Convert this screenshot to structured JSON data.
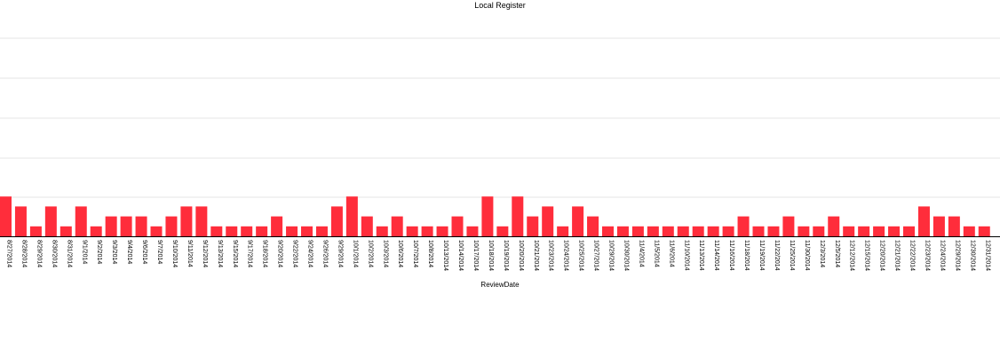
{
  "chart_data": {
    "type": "bar",
    "title": "Local Register",
    "xlabel": "ReviewDate",
    "ylabel": "",
    "bar_color": "#ff2d3b",
    "grid": true,
    "ylim": [
      0,
      10
    ],
    "categories": [
      "8/27/2014",
      "8/28/2014",
      "8/29/2014",
      "8/30/2014",
      "8/31/2014",
      "9/1/2014",
      "9/2/2014",
      "9/3/2014",
      "9/4/2014",
      "9/6/2014",
      "9/7/2014",
      "9/10/2014",
      "9/11/2014",
      "9/12/2014",
      "9/13/2014",
      "9/15/2014",
      "9/17/2014",
      "9/18/2014",
      "9/20/2014",
      "9/22/2014",
      "9/24/2014",
      "9/26/2014",
      "9/29/2014",
      "10/1/2014",
      "10/2/2014",
      "10/3/2014",
      "10/6/2014",
      "10/7/2014",
      "10/8/2014",
      "10/13/2014",
      "10/14/2014",
      "10/17/2014",
      "10/18/2014",
      "10/19/2014",
      "10/20/2014",
      "10/21/2014",
      "10/23/2014",
      "10/24/2014",
      "10/25/2014",
      "10/27/2014",
      "10/29/2014",
      "10/30/2014",
      "11/4/2014",
      "11/5/2014",
      "11/6/2014",
      "11/10/2014",
      "11/13/2014",
      "11/14/2014",
      "11/16/2014",
      "11/18/2014",
      "11/19/2014",
      "11/22/2014",
      "11/25/2014",
      "11/30/2014",
      "12/3/2014",
      "12/5/2014",
      "12/12/2014",
      "12/15/2014",
      "12/20/2014",
      "12/21/2014",
      "12/22/2014",
      "12/23/2014",
      "12/24/2014",
      "12/29/2014",
      "12/30/2014",
      "12/31/2014"
    ],
    "values": [
      4,
      3,
      1,
      3,
      1,
      3,
      1,
      2,
      2,
      2,
      1,
      2,
      3,
      3,
      1,
      1,
      1,
      1,
      2,
      1,
      1,
      1,
      3,
      4,
      2,
      1,
      2,
      1,
      1,
      1,
      2,
      1,
      4,
      1,
      4,
      2,
      3,
      1,
      3,
      2,
      1,
      1,
      1,
      1,
      1,
      1,
      1,
      1,
      1,
      2,
      1,
      1,
      2,
      1,
      1,
      2,
      1,
      1,
      1,
      1,
      1,
      3,
      2,
      2,
      1,
      1
    ]
  }
}
